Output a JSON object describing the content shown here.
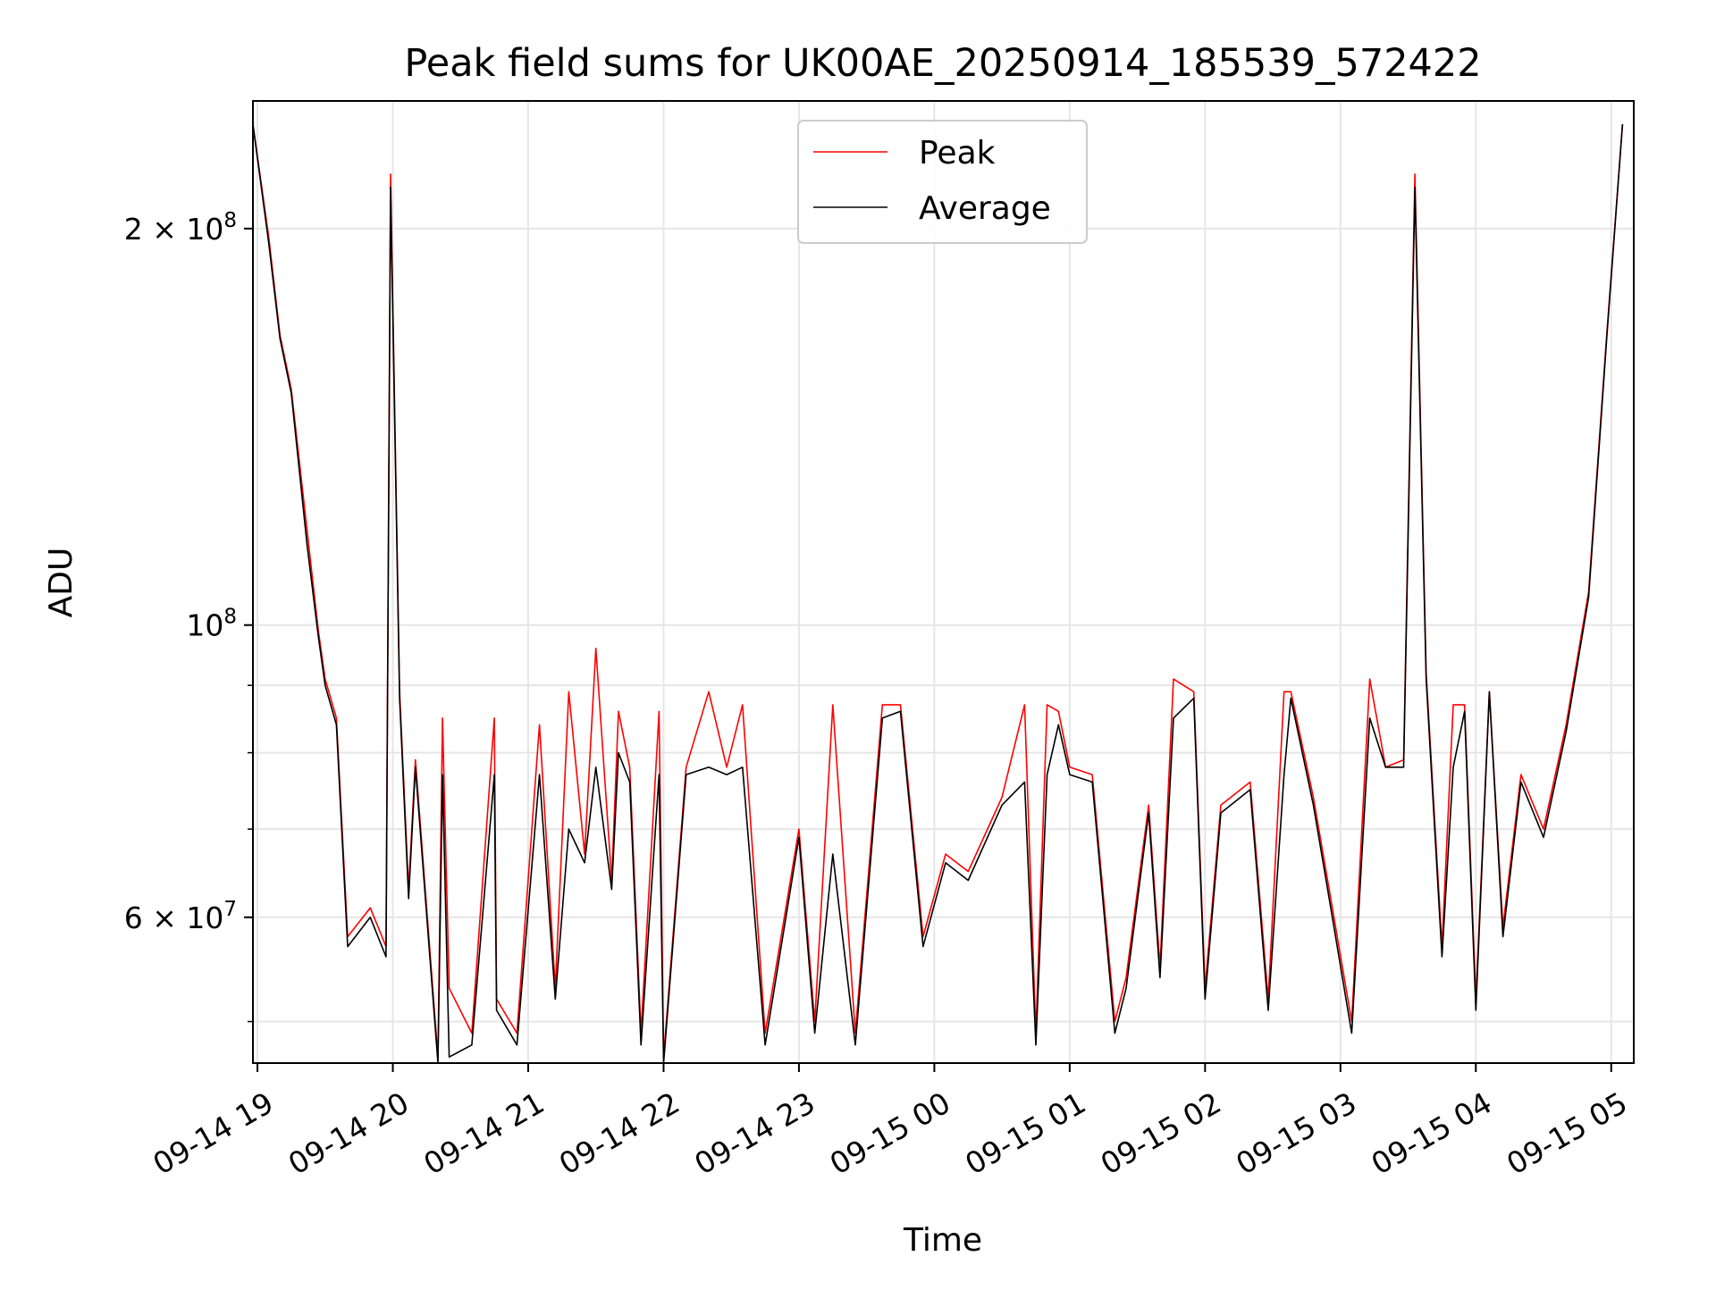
{
  "chart_data": {
    "type": "line",
    "title": "Peak field sums for UK00AE_20250914_185539_572422",
    "xlabel": "Time",
    "ylabel": "ADU",
    "xaxis_type": "datetime",
    "yscale": "log",
    "xlim": [
      "2025-09-14 18:58",
      "2025-09-15 05:10"
    ],
    "ylim": [
      46500000,
      250000000
    ],
    "grid": true,
    "legend_position": "top-center",
    "x_ticks": [
      "09-14 19",
      "09-14 20",
      "09-14 21",
      "09-14 22",
      "09-14 23",
      "09-15 00",
      "09-15 01",
      "09-15 02",
      "09-15 03",
      "09-15 04",
      "09-15 05"
    ],
    "y_major_ticks": [
      {
        "value": 100000000,
        "label": "10",
        "exp": "8",
        "coef": ""
      },
      {
        "value": 200000000,
        "label": "2 × 10",
        "exp": "8",
        "coef": "2"
      },
      {
        "value": 60000000,
        "label": "6 × 10",
        "exp": "7",
        "coef": "6"
      }
    ],
    "y_minor_ticks": [
      50000000,
      70000000,
      80000000,
      90000000
    ],
    "x": [
      "2025-09-14 18:58",
      "2025-09-14 19:05",
      "2025-09-14 19:10",
      "2025-09-14 19:15",
      "2025-09-14 19:22",
      "2025-09-14 19:27",
      "2025-09-14 19:30",
      "2025-09-14 19:35",
      "2025-09-14 19:40",
      "2025-09-14 19:50",
      "2025-09-14 19:57",
      "2025-09-14 19:59",
      "2025-09-14 20:03",
      "2025-09-14 20:07",
      "2025-09-14 20:10",
      "2025-09-14 20:20",
      "2025-09-14 20:22",
      "2025-09-14 20:25",
      "2025-09-14 20:35",
      "2025-09-14 20:45",
      "2025-09-14 20:46",
      "2025-09-14 20:55",
      "2025-09-14 21:05",
      "2025-09-14 21:12",
      "2025-09-14 21:18",
      "2025-09-14 21:25",
      "2025-09-14 21:30",
      "2025-09-14 21:37",
      "2025-09-14 21:40",
      "2025-09-14 21:45",
      "2025-09-14 21:50",
      "2025-09-14 21:58",
      "2025-09-14 22:00",
      "2025-09-14 22:10",
      "2025-09-14 22:20",
      "2025-09-14 22:28",
      "2025-09-14 22:35",
      "2025-09-14 22:45",
      "2025-09-14 23:00",
      "2025-09-14 23:07",
      "2025-09-14 23:15",
      "2025-09-14 23:25",
      "2025-09-14 23:37",
      "2025-09-14 23:45",
      "2025-09-14 23:55",
      "2025-09-15 00:05",
      "2025-09-15 00:15",
      "2025-09-15 00:30",
      "2025-09-15 00:40",
      "2025-09-15 00:45",
      "2025-09-15 00:50",
      "2025-09-15 00:55",
      "2025-09-15 01:00",
      "2025-09-15 01:10",
      "2025-09-15 01:20",
      "2025-09-15 01:25",
      "2025-09-15 01:35",
      "2025-09-15 01:40",
      "2025-09-15 01:46",
      "2025-09-15 01:55",
      "2025-09-15 02:00",
      "2025-09-15 02:07",
      "2025-09-15 02:20",
      "2025-09-15 02:28",
      "2025-09-15 02:35",
      "2025-09-15 02:38",
      "2025-09-15 02:48",
      "2025-09-15 02:55",
      "2025-09-15 03:05",
      "2025-09-15 03:13",
      "2025-09-15 03:20",
      "2025-09-15 03:28",
      "2025-09-15 03:33",
      "2025-09-15 03:38",
      "2025-09-15 03:45",
      "2025-09-15 03:50",
      "2025-09-15 03:55",
      "2025-09-15 04:00",
      "2025-09-15 04:06",
      "2025-09-15 04:12",
      "2025-09-15 04:20",
      "2025-09-15 04:30",
      "2025-09-15 04:40",
      "2025-09-15 04:50",
      "2025-09-15 04:58",
      "2025-09-15 05:05"
    ],
    "series": [
      {
        "name": "Average",
        "color": "#000000",
        "values": [
          240000000,
          195000000,
          165000000,
          150000000,
          115000000,
          98000000,
          90000000,
          84000000,
          57000000,
          60000000,
          56000000,
          215000000,
          88000000,
          62000000,
          78000000,
          46500000,
          77000000,
          47000000,
          48000000,
          77000000,
          51000000,
          48000000,
          77000000,
          52000000,
          70000000,
          66000000,
          78000000,
          63000000,
          80000000,
          76000000,
          48000000,
          77000000,
          46000000,
          77000000,
          78000000,
          77000000,
          78000000,
          48000000,
          69000000,
          49000000,
          67000000,
          48000000,
          85000000,
          86000000,
          57000000,
          66000000,
          64000000,
          73000000,
          76000000,
          48000000,
          77000000,
          84000000,
          77000000,
          76000000,
          49000000,
          53000000,
          72000000,
          54000000,
          85000000,
          88000000,
          52000000,
          72000000,
          75000000,
          51000000,
          77000000,
          88000000,
          73000000,
          62000000,
          49000000,
          85000000,
          78000000,
          78000000,
          215000000,
          91000000,
          56000000,
          78000000,
          86000000,
          51000000,
          89000000,
          58000000,
          76000000,
          69000000,
          83000000,
          105000000,
          165000000,
          240000000
        ]
      },
      {
        "name": "Peak",
        "color": "#ff0000",
        "values": [
          240000000,
          197000000,
          166000000,
          151000000,
          118000000,
          99000000,
          91000000,
          85000000,
          58000000,
          61000000,
          57000000,
          220000000,
          89000000,
          63000000,
          79000000,
          47000000,
          85000000,
          53000000,
          49000000,
          85000000,
          52000000,
          49000000,
          84000000,
          53000000,
          89000000,
          67000000,
          96000000,
          64000000,
          86000000,
          78000000,
          49000000,
          86000000,
          47000000,
          78000000,
          89000000,
          78000000,
          87000000,
          49000000,
          70000000,
          50000000,
          87000000,
          49000000,
          87000000,
          87000000,
          58000000,
          67000000,
          65000000,
          74000000,
          87000000,
          49000000,
          87000000,
          86000000,
          78000000,
          77000000,
          50000000,
          54000000,
          73000000,
          55000000,
          91000000,
          89000000,
          53000000,
          73000000,
          76000000,
          52000000,
          89000000,
          89000000,
          74000000,
          63000000,
          50000000,
          91000000,
          78000000,
          79000000,
          220000000,
          92000000,
          57000000,
          87000000,
          87000000,
          52000000,
          89000000,
          59000000,
          77000000,
          70000000,
          84000000,
          106000000,
          166000000,
          240000000
        ]
      }
    ]
  }
}
